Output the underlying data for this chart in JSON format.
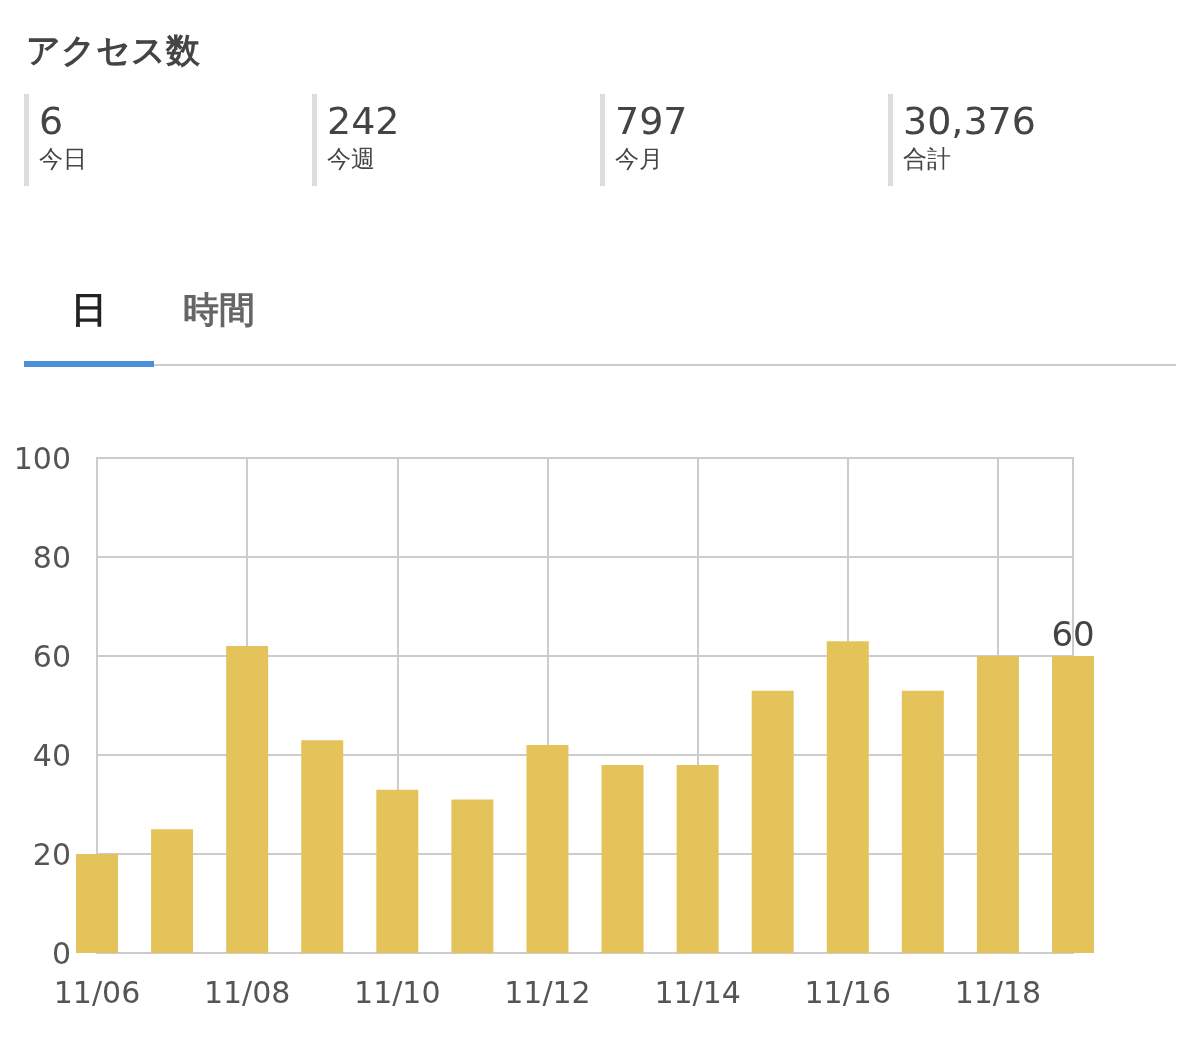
{
  "chart_data": [
    {
      "type": "other",
      "title": "アクセス数",
      "annotations": [
        "6",
        "今日",
        "242",
        "今週",
        "797",
        "今月",
        "30,376",
        "合計",
        "日",
        "時間"
      ]
    },
    {
      "type": "bar",
      "categories": [
        "11/06",
        null,
        "11/08",
        null,
        "11/10",
        null,
        "11/12",
        null,
        "11/14",
        null,
        "11/16",
        null,
        "11/18",
        null
      ],
      "values": [
        20,
        25,
        62,
        43,
        33,
        31,
        42,
        38,
        38,
        53,
        63,
        53,
        60,
        60
      ],
      "value_labels": [
        null,
        null,
        null,
        null,
        null,
        null,
        null,
        null,
        null,
        null,
        null,
        null,
        null,
        "60"
      ],
      "color": "#e4c35a",
      "ylim": [
        0,
        100
      ],
      "yticks": [
        0,
        20,
        40,
        60,
        80,
        100
      ],
      "grid": true
    }
  ]
}
